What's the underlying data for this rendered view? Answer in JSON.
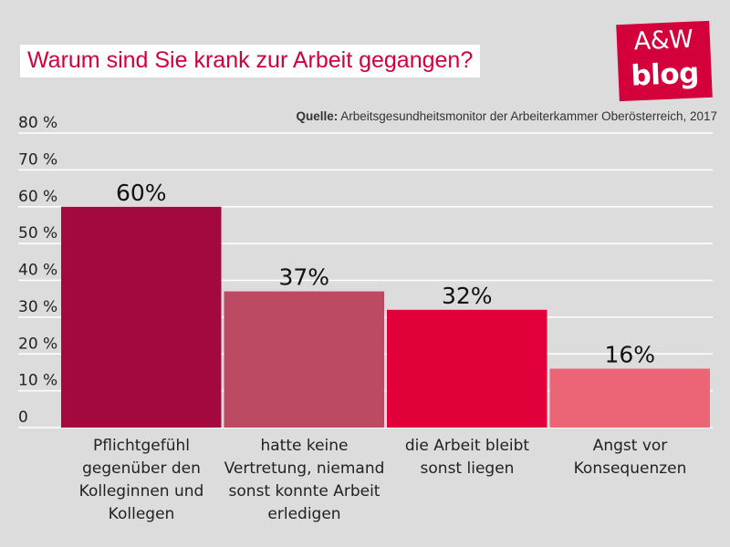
{
  "title": "Warum sind Sie krank zur Arbeit gegangen?",
  "logo": {
    "line1": "A&W",
    "line2": "blog"
  },
  "source": {
    "label": "Quelle:",
    "text": " Arbeitsgesundheitsmonitor der Arbeiterkammer Oberösterreich, 2017"
  },
  "colors": {
    "background": "#dcdcdc",
    "title": "#d4003c",
    "logo": "#d4003c",
    "grid": "#ffffff",
    "bars": [
      "#a3093e",
      "#bc4a62",
      "#e2003a",
      "#ec6576"
    ]
  },
  "chart_data": {
    "type": "bar",
    "title": "Warum sind Sie krank zur Arbeit gegangen?",
    "categories": [
      "Pflichtgefühl gegenüber den Kolleginnen und Kollegen",
      "hatte keine Vertretung, niemand sonst konnte Arbeit erledigen",
      "die Arbeit bleibt sonst liegen",
      "Angst vor Konsequenzen"
    ],
    "category_lines": [
      [
        "Pflichtgefühl",
        "gegenüber den",
        "Kolleginnen und",
        "Kollegen"
      ],
      [
        "hatte keine",
        "Vertretung, niemand",
        "sonst konnte Arbeit",
        "erledigen"
      ],
      [
        "die Arbeit bleibt",
        "sonst liegen"
      ],
      [
        "Angst vor",
        "Konsequenzen"
      ]
    ],
    "values": [
      60,
      37,
      32,
      16
    ],
    "value_labels": [
      "60%",
      "37%",
      "32%",
      "16%"
    ],
    "ylim": [
      0,
      80
    ],
    "yticks": [
      0,
      10,
      20,
      30,
      40,
      50,
      60,
      70,
      80
    ],
    "ytick_labels": [
      "0",
      "10 %",
      "20 %",
      "30 %",
      "40 %",
      "50 %",
      "60 %",
      "70 %",
      "80 %"
    ],
    "grid": true,
    "xlabel": "",
    "ylabel": ""
  }
}
